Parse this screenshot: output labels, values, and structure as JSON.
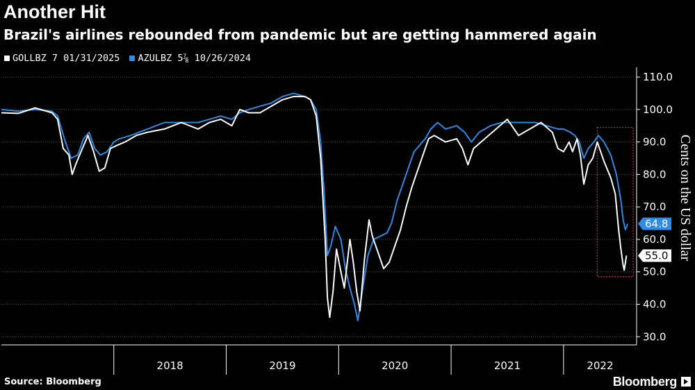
{
  "title": "Another Hit",
  "subtitle": "Brazil's airlines rebounded from pandemic but are getting hammered again",
  "source": "Source: Bloomberg",
  "brand": "Bloomberg",
  "colors": {
    "gol": "#ffffff",
    "azul": "#2f8be6",
    "highlight": "#e0303a",
    "grid": "#555555"
  },
  "chart_data": {
    "type": "line",
    "title": "Another Hit",
    "ylabel": "Cents on the US dollar",
    "xlabel": "",
    "ylim": [
      27.5,
      113
    ],
    "xlim": [
      2017.0,
      2022.65
    ],
    "yticks": [
      "110.0",
      "100.0",
      "90.0",
      "80.0",
      "70.0",
      "60.0",
      "50.0",
      "40.0",
      "30.0"
    ],
    "ytick_values": [
      110,
      100,
      90,
      80,
      70,
      60,
      50,
      40,
      30
    ],
    "x_year_labels": [
      "2018",
      "2019",
      "2020",
      "2021",
      "2022"
    ],
    "x_year_starts": [
      2018,
      2019,
      2020,
      2021,
      2022
    ],
    "highlight_range": {
      "x": [
        2022.3,
        2022.62
      ],
      "y": [
        48.5,
        94.5
      ]
    },
    "series": [
      {
        "name": "GOLLBZ 7 01/31/2025",
        "last_value": "55.0",
        "points": [
          [
            2017.0,
            99
          ],
          [
            2017.15,
            98.8
          ],
          [
            2017.3,
            100.5
          ],
          [
            2017.45,
            99
          ],
          [
            2017.5,
            97
          ],
          [
            2017.55,
            88
          ],
          [
            2017.6,
            86
          ],
          [
            2017.63,
            80
          ],
          [
            2017.66,
            83
          ],
          [
            2017.72,
            88
          ],
          [
            2017.77,
            92
          ],
          [
            2017.82,
            87
          ],
          [
            2017.87,
            81
          ],
          [
            2017.92,
            82
          ],
          [
            2017.97,
            88
          ],
          [
            2018.03,
            89
          ],
          [
            2018.1,
            90
          ],
          [
            2018.2,
            92
          ],
          [
            2018.3,
            93
          ],
          [
            2018.45,
            94
          ],
          [
            2018.6,
            96
          ],
          [
            2018.75,
            94
          ],
          [
            2018.85,
            96
          ],
          [
            2018.95,
            97
          ],
          [
            2019.05,
            95
          ],
          [
            2019.12,
            100
          ],
          [
            2019.2,
            99
          ],
          [
            2019.3,
            99
          ],
          [
            2019.4,
            101
          ],
          [
            2019.5,
            103
          ],
          [
            2019.6,
            104
          ],
          [
            2019.7,
            104
          ],
          [
            2019.75,
            103
          ],
          [
            2019.8,
            98
          ],
          [
            2019.84,
            85
          ],
          [
            2019.88,
            60
          ],
          [
            2019.9,
            42
          ],
          [
            2019.92,
            36
          ],
          [
            2019.95,
            44
          ],
          [
            2019.98,
            57
          ],
          [
            2020.02,
            50
          ],
          [
            2020.05,
            45
          ],
          [
            2020.1,
            60
          ],
          [
            2020.13,
            53
          ],
          [
            2020.16,
            44
          ],
          [
            2020.19,
            38
          ],
          [
            2020.23,
            54
          ],
          [
            2020.27,
            66
          ],
          [
            2020.3,
            61
          ],
          [
            2020.35,
            56
          ],
          [
            2020.4,
            51
          ],
          [
            2020.45,
            53
          ],
          [
            2020.5,
            58
          ],
          [
            2020.55,
            63
          ],
          [
            2020.6,
            70
          ],
          [
            2020.65,
            76
          ],
          [
            2020.7,
            81
          ],
          [
            2020.75,
            86
          ],
          [
            2020.8,
            91
          ],
          [
            2020.85,
            92
          ],
          [
            2020.95,
            90
          ],
          [
            2021.05,
            91
          ],
          [
            2021.1,
            88
          ],
          [
            2021.15,
            83
          ],
          [
            2021.2,
            88
          ],
          [
            2021.3,
            91
          ],
          [
            2021.4,
            94
          ],
          [
            2021.5,
            97
          ],
          [
            2021.6,
            92
          ],
          [
            2021.7,
            94
          ],
          [
            2021.8,
            96
          ],
          [
            2021.9,
            93
          ],
          [
            2021.95,
            88
          ],
          [
            2022.0,
            87
          ],
          [
            2022.05,
            90
          ],
          [
            2022.08,
            87
          ],
          [
            2022.12,
            91
          ],
          [
            2022.15,
            86
          ],
          [
            2022.18,
            77
          ],
          [
            2022.22,
            83
          ],
          [
            2022.26,
            85
          ],
          [
            2022.3,
            90
          ],
          [
            2022.36,
            84
          ],
          [
            2022.42,
            79
          ],
          [
            2022.46,
            74
          ],
          [
            2022.49,
            63
          ],
          [
            2022.51,
            57
          ],
          [
            2022.53,
            52
          ],
          [
            2022.54,
            50.5
          ],
          [
            2022.56,
            55
          ]
        ]
      },
      {
        "name": "AZULBZ 5⅞ 10/26/2024",
        "last_value": "64.8",
        "points": [
          [
            2017.0,
            100
          ],
          [
            2017.15,
            99.5
          ],
          [
            2017.3,
            100
          ],
          [
            2017.45,
            99.5
          ],
          [
            2017.5,
            98
          ],
          [
            2017.56,
            91
          ],
          [
            2017.62,
            85
          ],
          [
            2017.68,
            86
          ],
          [
            2017.73,
            91
          ],
          [
            2017.78,
            93
          ],
          [
            2017.83,
            88
          ],
          [
            2017.88,
            86
          ],
          [
            2017.94,
            87
          ],
          [
            2018.0,
            90
          ],
          [
            2018.05,
            91
          ],
          [
            2018.15,
            92
          ],
          [
            2018.3,
            94
          ],
          [
            2018.45,
            96
          ],
          [
            2018.6,
            96
          ],
          [
            2018.75,
            96
          ],
          [
            2018.85,
            97
          ],
          [
            2018.95,
            98
          ],
          [
            2019.05,
            97
          ],
          [
            2019.12,
            99
          ],
          [
            2019.2,
            100
          ],
          [
            2019.3,
            101
          ],
          [
            2019.4,
            102
          ],
          [
            2019.5,
            104
          ],
          [
            2019.6,
            105
          ],
          [
            2019.7,
            104
          ],
          [
            2019.75,
            103
          ],
          [
            2019.8,
            100
          ],
          [
            2019.84,
            90
          ],
          [
            2019.87,
            75
          ],
          [
            2019.9,
            55
          ],
          [
            2019.93,
            58
          ],
          [
            2019.97,
            64
          ],
          [
            2020.02,
            60
          ],
          [
            2020.06,
            51
          ],
          [
            2020.1,
            45
          ],
          [
            2020.14,
            40
          ],
          [
            2020.17,
            35
          ],
          [
            2020.21,
            44
          ],
          [
            2020.26,
            55
          ],
          [
            2020.31,
            60
          ],
          [
            2020.37,
            61
          ],
          [
            2020.43,
            62
          ],
          [
            2020.47,
            65
          ],
          [
            2020.52,
            72
          ],
          [
            2020.57,
            77
          ],
          [
            2020.62,
            82
          ],
          [
            2020.67,
            87
          ],
          [
            2020.72,
            89
          ],
          [
            2020.77,
            91
          ],
          [
            2020.82,
            94
          ],
          [
            2020.88,
            96
          ],
          [
            2020.95,
            94
          ],
          [
            2021.05,
            95
          ],
          [
            2021.12,
            93
          ],
          [
            2021.18,
            90
          ],
          [
            2021.25,
            93
          ],
          [
            2021.35,
            95
          ],
          [
            2021.45,
            96
          ],
          [
            2021.55,
            96
          ],
          [
            2021.65,
            96
          ],
          [
            2021.75,
            96
          ],
          [
            2021.85,
            95
          ],
          [
            2021.95,
            94
          ],
          [
            2022.0,
            94
          ],
          [
            2022.06,
            93
          ],
          [
            2022.1,
            92
          ],
          [
            2022.14,
            90
          ],
          [
            2022.18,
            85
          ],
          [
            2022.22,
            88
          ],
          [
            2022.27,
            90
          ],
          [
            2022.31,
            92
          ],
          [
            2022.36,
            90
          ],
          [
            2022.42,
            86
          ],
          [
            2022.47,
            80
          ],
          [
            2022.51,
            72
          ],
          [
            2022.53,
            66
          ],
          [
            2022.55,
            63
          ],
          [
            2022.57,
            64.8
          ]
        ]
      }
    ]
  }
}
